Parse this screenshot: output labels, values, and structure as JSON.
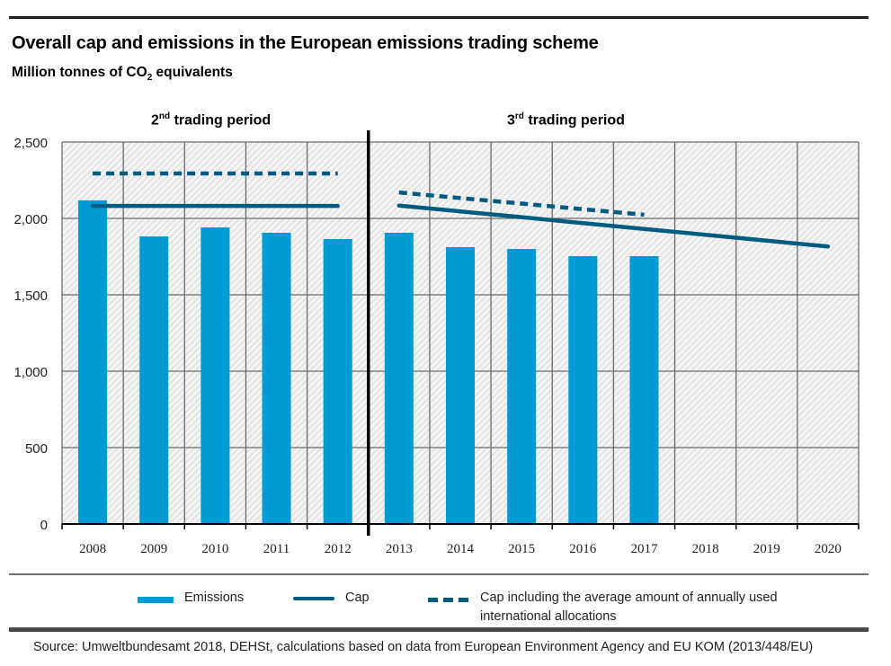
{
  "header": {
    "title": "Overall cap and emissions in the European emissions trading scheme",
    "subtitle_pre": "Million tonnes of CO",
    "subtitle_sub": "2",
    "subtitle_post": " equivalents"
  },
  "periods": [
    {
      "num": "2",
      "sup": "nd",
      "label": " trading period"
    },
    {
      "num": "3",
      "sup": "rd",
      "label": " trading period"
    }
  ],
  "legend": {
    "emissions": "Emissions",
    "cap": "Cap",
    "cap_intl_line1": "Cap including the average amount of annually used",
    "cap_intl_line2": "international allocations"
  },
  "source": "Source: Umweltbundesamt 2018, DEHSt, calculations based on data from European Environment Agency and EU KOM (2013/448/EU)",
  "colors": {
    "emissions": "#009ad4",
    "cap": "#005b81",
    "grid": "#6b6b6b",
    "divider": "#000000"
  },
  "chart_data": {
    "type": "bar",
    "title": "Overall cap and emissions in the European emissions trading scheme",
    "ylabel": "Million tonnes of CO2 equivalents",
    "xlabel": "",
    "categories": [
      "2008",
      "2009",
      "2010",
      "2011",
      "2012",
      "2013",
      "2014",
      "2015",
      "2016",
      "2017",
      "2018",
      "2019",
      "2020"
    ],
    "ylim": [
      0,
      2500
    ],
    "yticks": [
      0,
      500,
      1000,
      1500,
      2000,
      2500
    ],
    "ytick_labels": [
      "0",
      "500",
      "1,000",
      "1,500",
      "2,000",
      "2,500"
    ],
    "grid": true,
    "legend_position": "bottom",
    "period_divider_after": "2012",
    "series": [
      {
        "name": "Emissions",
        "type": "bar",
        "values": [
          2118,
          1882,
          1941,
          1906,
          1865,
          1906,
          1812,
          1800,
          1753,
          1753,
          null,
          null,
          null
        ]
      },
      {
        "name": "Cap",
        "type": "line",
        "segments": [
          {
            "x": [
              "2008",
              "2012"
            ],
            "values": [
              2082,
              2082
            ]
          },
          {
            "x": [
              "2013",
              "2014",
              "2015",
              "2016",
              "2017",
              "2018",
              "2019",
              "2020"
            ],
            "values": [
              2084,
              2046,
              2008,
              1969,
              1931,
              1893,
              1854,
              1816
            ]
          }
        ]
      },
      {
        "name": "Cap including the average amount of annually used international allocations",
        "type": "line-dashed",
        "segments": [
          {
            "x": [
              "2008",
              "2012"
            ],
            "values": [
              2294,
              2294
            ]
          },
          {
            "x": [
              "2013",
              "2014",
              "2015",
              "2016",
              "2017"
            ],
            "values": [
              2170,
              2133,
              2097,
              2060,
              2024
            ]
          }
        ]
      }
    ]
  }
}
